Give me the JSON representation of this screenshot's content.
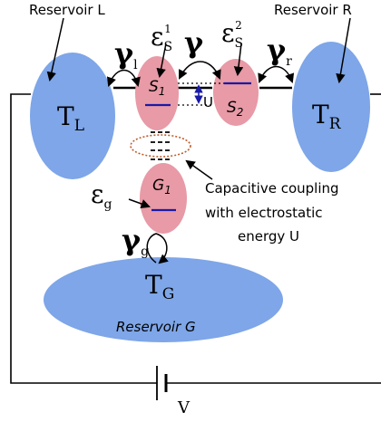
{
  "reservoirs": {
    "left": {
      "caption": "Reservoir L",
      "temp": "T",
      "temp_sub": "L"
    },
    "right": {
      "caption": "Reservoir R",
      "temp": "T",
      "temp_sub": "R"
    },
    "gate": {
      "caption": "Reservoir G",
      "temp": "T",
      "temp_sub": "G"
    }
  },
  "dots": {
    "s1": {
      "label": "S",
      "sub": "1"
    },
    "s2": {
      "label": "S",
      "sub": "2"
    },
    "g1": {
      "label": "G",
      "sub": "1"
    }
  },
  "energies": {
    "es1": {
      "sym": "ε",
      "sub": "S",
      "sup": "1"
    },
    "es2": {
      "sym": "ε",
      "sub": "S",
      "sup": "2"
    },
    "eg": {
      "sym": "ε",
      "sub": "g"
    }
  },
  "couplings": {
    "left": {
      "sym": "γ",
      "sub": "l"
    },
    "middle": {
      "sym": "γ"
    },
    "right": {
      "sym": "γ",
      "sub": "r"
    },
    "gate": {
      "sym": "γ",
      "sub": "g"
    }
  },
  "interaction": {
    "label": "U"
  },
  "annotation": {
    "line1": "Capacitive coupling",
    "line2": "with electrostatic",
    "line3": "energy U"
  },
  "bias": {
    "label": "V"
  },
  "colors": {
    "reservoir": "#7ea6e8",
    "dot": "#e89aa6",
    "level": "#1a1aa8",
    "coupling_oval": "#c05a2a"
  }
}
